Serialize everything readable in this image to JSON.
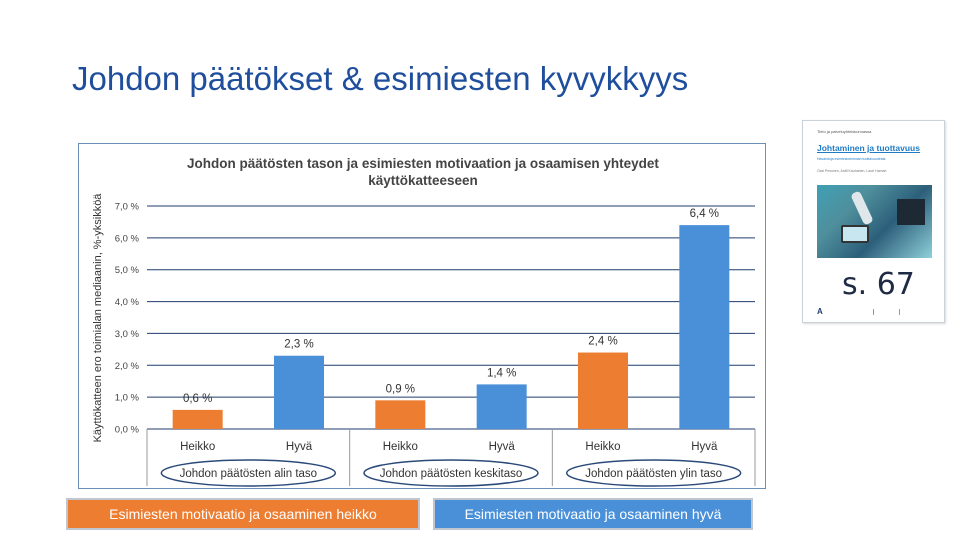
{
  "slide": {
    "title": "Johdon päätökset & esimiesten kyvykkyys"
  },
  "colors": {
    "title": "#1f4e9c",
    "heikko": "#ed7d31",
    "hyva": "#4a90d9",
    "axis_text": "#444444",
    "grid": "#1f3d6e"
  },
  "chart_data": {
    "type": "bar",
    "title": "Johdon päätösten tason ja esimiesten motivaation ja osaamisen yhteydet käyttökatteeseen",
    "title_lines": [
      "Johdon päätösten tason ja esimiesten motivaation ja osaamisen yhteydet",
      "käyttökatteeseen"
    ],
    "ylabel": "Käyttökatteen ero toimialan mediaanin, %-yksikköä",
    "ylim": [
      0,
      7
    ],
    "yticks": [
      "0,0 %",
      "1,0 %",
      "2,0 %",
      "3,0 %",
      "4,0 %",
      "5,0 %",
      "6,0 %",
      "7,0 %"
    ],
    "grid": true,
    "categories": [
      "Heikko",
      "Hyvä",
      "Heikko",
      "Hyvä",
      "Heikko",
      "Hyvä"
    ],
    "values": [
      0.6,
      2.3,
      0.9,
      1.4,
      2.4,
      6.4
    ],
    "value_labels": [
      "0,6 %",
      "2,3 %",
      "0,9 %",
      "1,4 %",
      "2,4 %",
      "6,4 %"
    ],
    "groups": [
      "Johdon päätösten alin taso",
      "Johdon päätösten keskitaso",
      "Johdon päätösten ylin taso"
    ],
    "legend": {
      "heikko": "Esimiesten motivaatio ja osaaminen heikko",
      "hyva": "Esimiesten motivaatio ja osaaminen hyvä",
      "placement": "bottom"
    }
  },
  "book": {
    "series": "Tieto ja palveluyhteiskunnassa",
    "title": "Johtaminen ja tuottavuus",
    "subtitle": "Havaintoja esimiestoiminnan tuottavuudesta",
    "authors": "Ossi Pesonen, Antti Kauhanen, Lauri Hamari",
    "page_label": "s. 67",
    "logo": "A"
  }
}
